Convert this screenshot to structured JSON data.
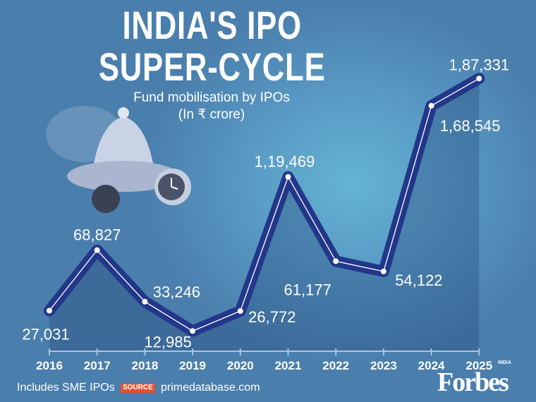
{
  "header": {
    "title_line1": "INDIA'S IPO",
    "title_line2": "SUPER-CYCLE",
    "subtitle_line1": "Fund mobilisation by IPOs",
    "subtitle_line2": "(In ₹ crore)"
  },
  "chart_data": {
    "type": "line",
    "title": "INDIA'S IPO SUPER-CYCLE",
    "subtitle": "Fund mobilisation by IPOs (In ₹ crore)",
    "categories": [
      "2016",
      "2017",
      "2018",
      "2019",
      "2020",
      "2021",
      "2022",
      "2023",
      "2024",
      "2025"
    ],
    "values": [
      27031,
      68827,
      33246,
      12985,
      26772,
      119469,
      61177,
      54122,
      168545,
      187331
    ],
    "value_labels": [
      "27,031",
      "68,827",
      "33,246",
      "12,985",
      "26,772",
      "1,19,469",
      "61,177",
      "54,122",
      "1,68,545",
      "1,87,331"
    ],
    "ylim": [
      0,
      190000
    ],
    "grid": false,
    "colors": {
      "line": "#22378a",
      "inner_line": "#ffffff",
      "background": "#4a7eac"
    }
  },
  "footer": {
    "note": "Includes SME IPOs",
    "source_badge": "SOURCE",
    "source": "primedatabase.com",
    "logo": "Forbes",
    "logo_sub": "INDIA"
  }
}
